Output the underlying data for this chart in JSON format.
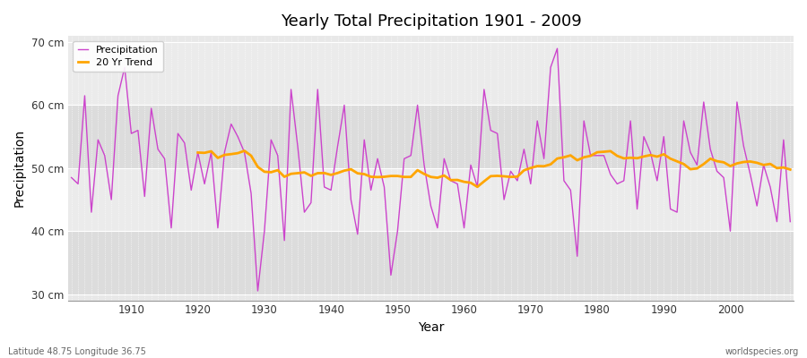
{
  "title": "Yearly Total Precipitation 1901 - 2009",
  "xlabel": "Year",
  "ylabel": "Precipitation",
  "subtitle_left": "Latitude 48.75 Longitude 36.75",
  "subtitle_right": "worldspecies.org",
  "years": [
    1901,
    1902,
    1903,
    1904,
    1905,
    1906,
    1907,
    1908,
    1909,
    1910,
    1911,
    1912,
    1913,
    1914,
    1915,
    1916,
    1917,
    1918,
    1919,
    1920,
    1921,
    1922,
    1923,
    1924,
    1925,
    1926,
    1927,
    1928,
    1929,
    1930,
    1931,
    1932,
    1933,
    1934,
    1935,
    1936,
    1937,
    1938,
    1939,
    1940,
    1941,
    1942,
    1943,
    1944,
    1945,
    1946,
    1947,
    1948,
    1949,
    1950,
    1951,
    1952,
    1953,
    1954,
    1955,
    1956,
    1957,
    1958,
    1959,
    1960,
    1961,
    1962,
    1963,
    1964,
    1965,
    1966,
    1967,
    1968,
    1969,
    1970,
    1971,
    1972,
    1973,
    1974,
    1975,
    1976,
    1977,
    1978,
    1979,
    1980,
    1981,
    1982,
    1983,
    1984,
    1985,
    1986,
    1987,
    1988,
    1989,
    1990,
    1991,
    1992,
    1993,
    1994,
    1995,
    1996,
    1997,
    1998,
    1999,
    2000,
    2001,
    2002,
    2003,
    2004,
    2005,
    2006,
    2007,
    2008,
    2009
  ],
  "precip": [
    48.5,
    47.5,
    61.5,
    43.0,
    54.5,
    52.0,
    45.0,
    61.5,
    66.0,
    55.5,
    56.0,
    45.5,
    59.5,
    53.0,
    51.5,
    40.5,
    55.5,
    54.0,
    46.5,
    52.5,
    47.5,
    52.5,
    40.5,
    52.5,
    57.0,
    55.0,
    52.5,
    46.0,
    30.5,
    40.0,
    54.5,
    52.0,
    38.5,
    62.5,
    53.5,
    43.0,
    44.5,
    62.5,
    47.0,
    46.5,
    53.5,
    60.0,
    45.0,
    39.5,
    54.5,
    46.5,
    51.5,
    47.0,
    33.0,
    40.0,
    51.5,
    52.0,
    60.0,
    50.5,
    44.0,
    40.5,
    51.5,
    48.0,
    47.5,
    40.5,
    50.5,
    47.0,
    62.5,
    56.0,
    55.5,
    45.0,
    49.5,
    48.0,
    53.0,
    47.5,
    57.5,
    51.5,
    66.0,
    69.0,
    48.0,
    46.5,
    36.0,
    57.5,
    52.0,
    52.0,
    52.0,
    49.0,
    47.5,
    48.0,
    57.5,
    43.5,
    55.0,
    52.5,
    48.0,
    55.0,
    43.5,
    43.0,
    57.5,
    52.5,
    50.5,
    60.5,
    53.0,
    49.5,
    48.5,
    40.0,
    60.5,
    53.5,
    49.0,
    44.0,
    50.5,
    47.0,
    41.5,
    54.5,
    41.5
  ],
  "precip_color": "#CC44CC",
  "trend_color": "#FFA500",
  "fig_bg_color": "#FFFFFF",
  "plot_bg_color": "#E8E8E8",
  "band_color_dark": "#DCDCDC",
  "band_color_light": "#EBEBEB",
  "grid_color": "#FFFFFF",
  "ylim": [
    29,
    71
  ],
  "yticks": [
    30,
    40,
    50,
    60,
    70
  ],
  "ytick_labels": [
    "30 cm",
    "40 cm",
    "50 cm",
    "60 cm",
    "70 cm"
  ],
  "xticks": [
    1910,
    1920,
    1930,
    1940,
    1950,
    1960,
    1970,
    1980,
    1990,
    2000
  ],
  "trend_window": 20
}
